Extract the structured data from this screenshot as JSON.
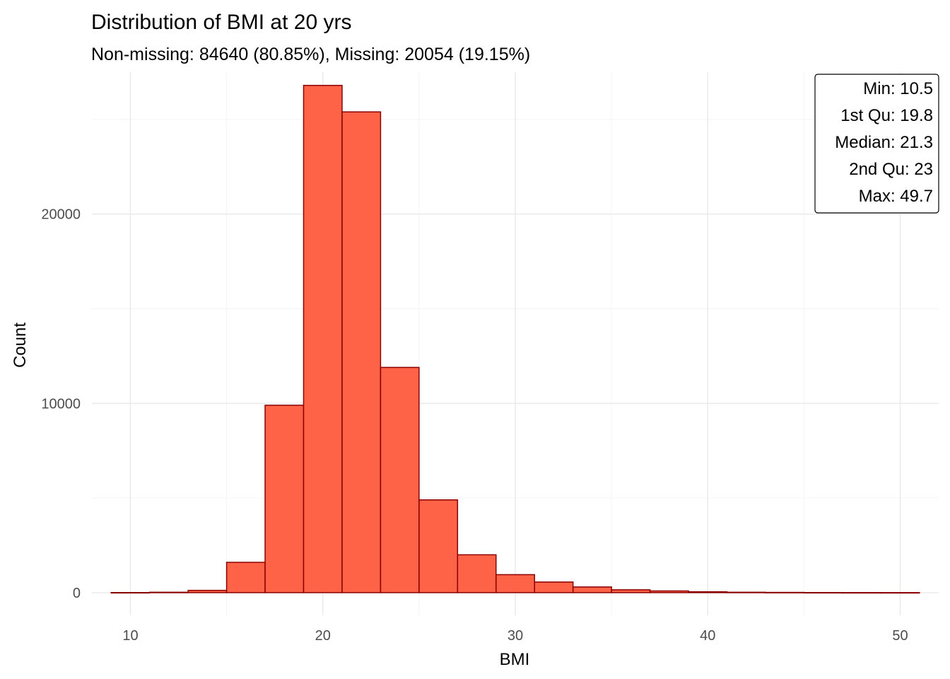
{
  "chart_data": {
    "type": "bar",
    "title": "Distribution of BMI at 20 yrs",
    "subtitle": "Non-missing: 84640 (80.85%), Missing: 20054 (19.15%)",
    "xlabel": "BMI",
    "ylabel": "Count",
    "xlim": [
      8,
      52
    ],
    "ylim": [
      -1200,
      27500
    ],
    "x_ticks": [
      10,
      20,
      30,
      40,
      50
    ],
    "y_ticks": [
      0,
      10000,
      20000
    ],
    "grid": true,
    "bin_width": 2,
    "bins": [
      {
        "x0": 9,
        "x1": 11,
        "count": 5
      },
      {
        "x0": 11,
        "x1": 13,
        "count": 20
      },
      {
        "x0": 13,
        "x1": 15,
        "count": 120
      },
      {
        "x0": 15,
        "x1": 17,
        "count": 1600
      },
      {
        "x0": 17,
        "x1": 19,
        "count": 9900
      },
      {
        "x0": 19,
        "x1": 21,
        "count": 26800
      },
      {
        "x0": 21,
        "x1": 23,
        "count": 25400
      },
      {
        "x0": 23,
        "x1": 25,
        "count": 11900
      },
      {
        "x0": 25,
        "x1": 27,
        "count": 4900
      },
      {
        "x0": 27,
        "x1": 29,
        "count": 2000
      },
      {
        "x0": 29,
        "x1": 31,
        "count": 950
      },
      {
        "x0": 31,
        "x1": 33,
        "count": 560
      },
      {
        "x0": 33,
        "x1": 35,
        "count": 300
      },
      {
        "x0": 35,
        "x1": 37,
        "count": 150
      },
      {
        "x0": 37,
        "x1": 39,
        "count": 90
      },
      {
        "x0": 39,
        "x1": 41,
        "count": 45
      },
      {
        "x0": 41,
        "x1": 43,
        "count": 20
      },
      {
        "x0": 43,
        "x1": 45,
        "count": 12
      },
      {
        "x0": 45,
        "x1": 47,
        "count": 6
      },
      {
        "x0": 47,
        "x1": 49,
        "count": 3
      },
      {
        "x0": 49,
        "x1": 51,
        "count": 2
      }
    ],
    "colors": {
      "fill": "#ff6347",
      "outline": "#8b0000"
    },
    "summary_box": {
      "position": "top-right",
      "lines": [
        "Min: 10.5",
        "1st Qu: 19.8",
        "Median: 21.3",
        "2nd Qu: 23",
        "Max: 49.7"
      ]
    }
  }
}
